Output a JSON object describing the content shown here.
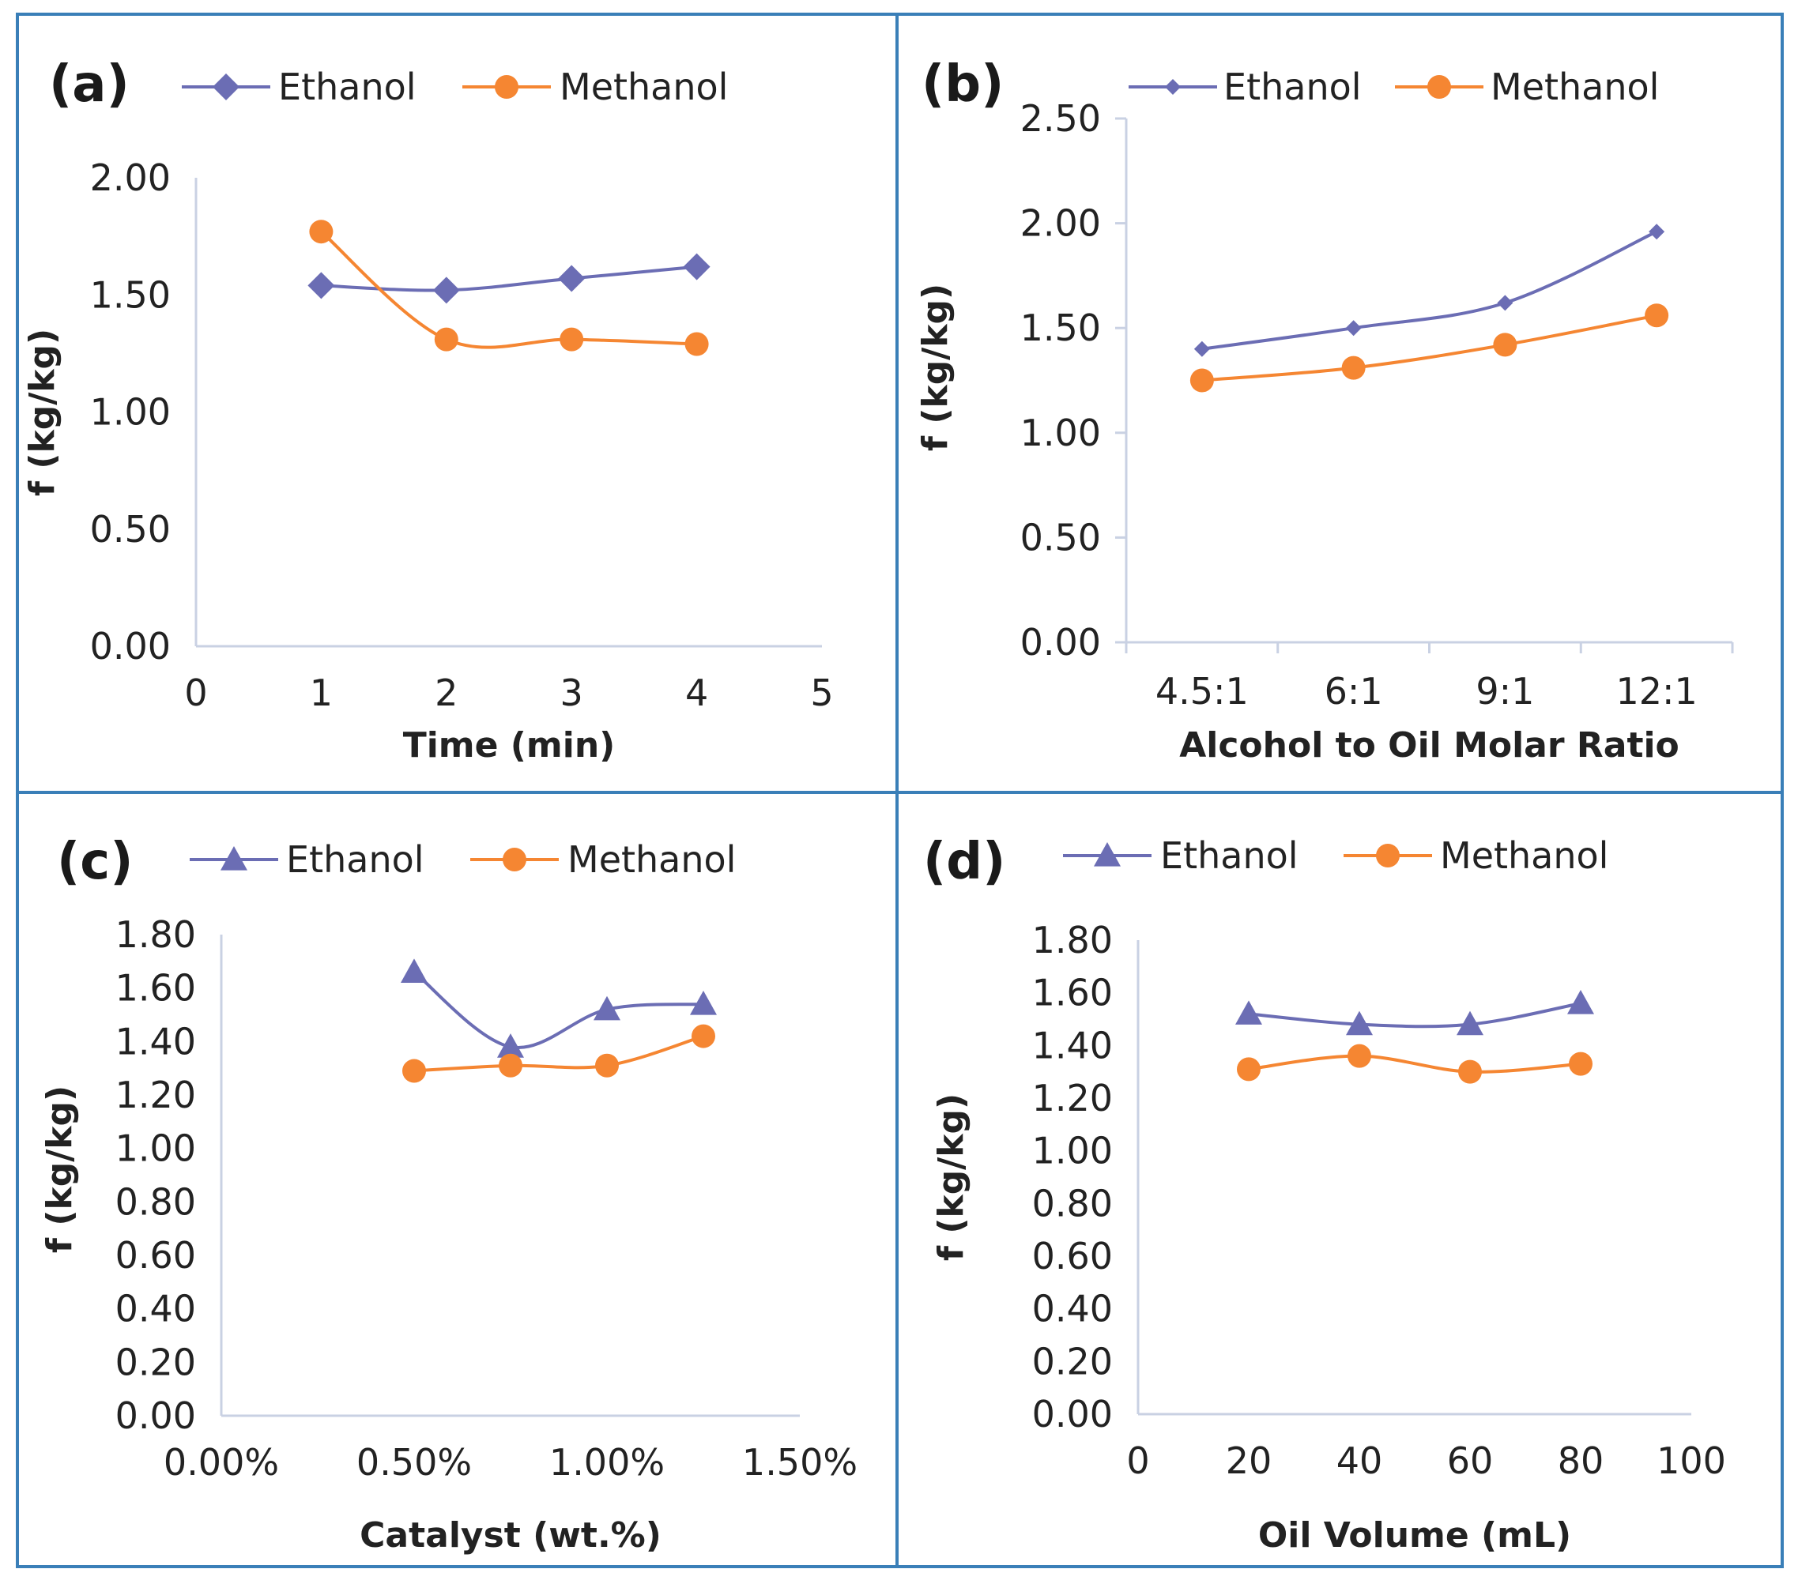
{
  "colors": {
    "ethanol": "#6b6db4",
    "methanol": "#f58632",
    "axis": "#c9d1e3",
    "border": "#3a7fb8"
  },
  "chart_data": [
    {
      "type": "line",
      "panel": "(a)",
      "xlabel": "Time (min)",
      "ylabel": "f (kg/kg)",
      "x_numeric": true,
      "xlim": [
        0,
        5
      ],
      "x_ticks": [
        0,
        1,
        2,
        3,
        4,
        5
      ],
      "x_tick_labels": [
        "0",
        "1",
        "2",
        "3",
        "4",
        "5"
      ],
      "ylim": [
        0,
        2.0
      ],
      "y_ticks": [
        0,
        0.5,
        1.0,
        1.5,
        2.0
      ],
      "y_tick_labels": [
        "0.00",
        "0.50",
        "1.00",
        "1.50",
        "2.00"
      ],
      "series": [
        {
          "name": "Ethanol",
          "marker": "diamond",
          "x": [
            1,
            2,
            3,
            4
          ],
          "values": [
            1.54,
            1.52,
            1.57,
            1.62
          ]
        },
        {
          "name": "Methanol",
          "marker": "circle",
          "x": [
            1,
            2,
            3,
            4
          ],
          "values": [
            1.77,
            1.31,
            1.31,
            1.29
          ]
        }
      ]
    },
    {
      "type": "line",
      "panel": "(b)",
      "xlabel": "Alcohol to Oil Molar Ratio",
      "ylabel": "f (kg/kg)",
      "x_numeric": false,
      "categories": [
        "4.5:1",
        "6:1",
        "9:1",
        "12:1"
      ],
      "ylim": [
        0,
        2.5
      ],
      "y_ticks": [
        0,
        0.5,
        1.0,
        1.5,
        2.0,
        2.5
      ],
      "y_tick_labels": [
        "0.00",
        "0.50",
        "1.00",
        "1.50",
        "2.00",
        "2.50"
      ],
      "series": [
        {
          "name": "Ethanol",
          "marker": "small-diamond",
          "values": [
            1.4,
            1.5,
            1.62,
            1.96
          ]
        },
        {
          "name": "Methanol",
          "marker": "circle",
          "values": [
            1.25,
            1.31,
            1.42,
            1.56
          ]
        }
      ]
    },
    {
      "type": "line",
      "panel": "(c)",
      "xlabel": "Catalyst (wt.%)",
      "ylabel": "f (kg/kg)",
      "x_numeric": true,
      "xlim": [
        0,
        0.015
      ],
      "x_ticks": [
        0,
        0.005,
        0.01,
        0.015
      ],
      "x_tick_labels": [
        "0.00%",
        "0.50%",
        "1.00%",
        "1.50%"
      ],
      "ylim": [
        0,
        1.8
      ],
      "y_ticks": [
        0,
        0.2,
        0.4,
        0.6,
        0.8,
        1.0,
        1.2,
        1.4,
        1.6,
        1.8
      ],
      "y_tick_labels": [
        "0.00",
        "0.20",
        "0.40",
        "0.60",
        "0.80",
        "1.00",
        "1.20",
        "1.40",
        "1.60",
        "1.80"
      ],
      "series": [
        {
          "name": "Ethanol",
          "marker": "triangle",
          "x": [
            0.005,
            0.0075,
            0.01,
            0.0125
          ],
          "values": [
            1.66,
            1.38,
            1.52,
            1.54
          ]
        },
        {
          "name": "Methanol",
          "marker": "circle",
          "x": [
            0.005,
            0.0075,
            0.01,
            0.0125
          ],
          "values": [
            1.29,
            1.31,
            1.31,
            1.42
          ]
        }
      ]
    },
    {
      "type": "line",
      "panel": "(d)",
      "xlabel": "Oil Volume (mL)",
      "ylabel": "f (kg/kg)",
      "x_numeric": true,
      "xlim": [
        0,
        100
      ],
      "x_ticks": [
        0,
        20,
        40,
        60,
        80,
        100
      ],
      "x_tick_labels": [
        "0",
        "20",
        "40",
        "60",
        "80",
        "100"
      ],
      "ylim": [
        0,
        1.8
      ],
      "y_ticks": [
        0,
        0.2,
        0.4,
        0.6,
        0.8,
        1.0,
        1.2,
        1.4,
        1.6,
        1.8
      ],
      "y_tick_labels": [
        "0.00",
        "0.20",
        "0.40",
        "0.60",
        "0.80",
        "1.00",
        "1.20",
        "1.40",
        "1.60",
        "1.80"
      ],
      "series": [
        {
          "name": "Ethanol",
          "marker": "triangle",
          "x": [
            20,
            40,
            60,
            80
          ],
          "values": [
            1.52,
            1.48,
            1.48,
            1.56
          ]
        },
        {
          "name": "Methanol",
          "marker": "circle",
          "x": [
            20,
            40,
            60,
            80
          ],
          "values": [
            1.31,
            1.36,
            1.3,
            1.33
          ]
        }
      ]
    }
  ]
}
